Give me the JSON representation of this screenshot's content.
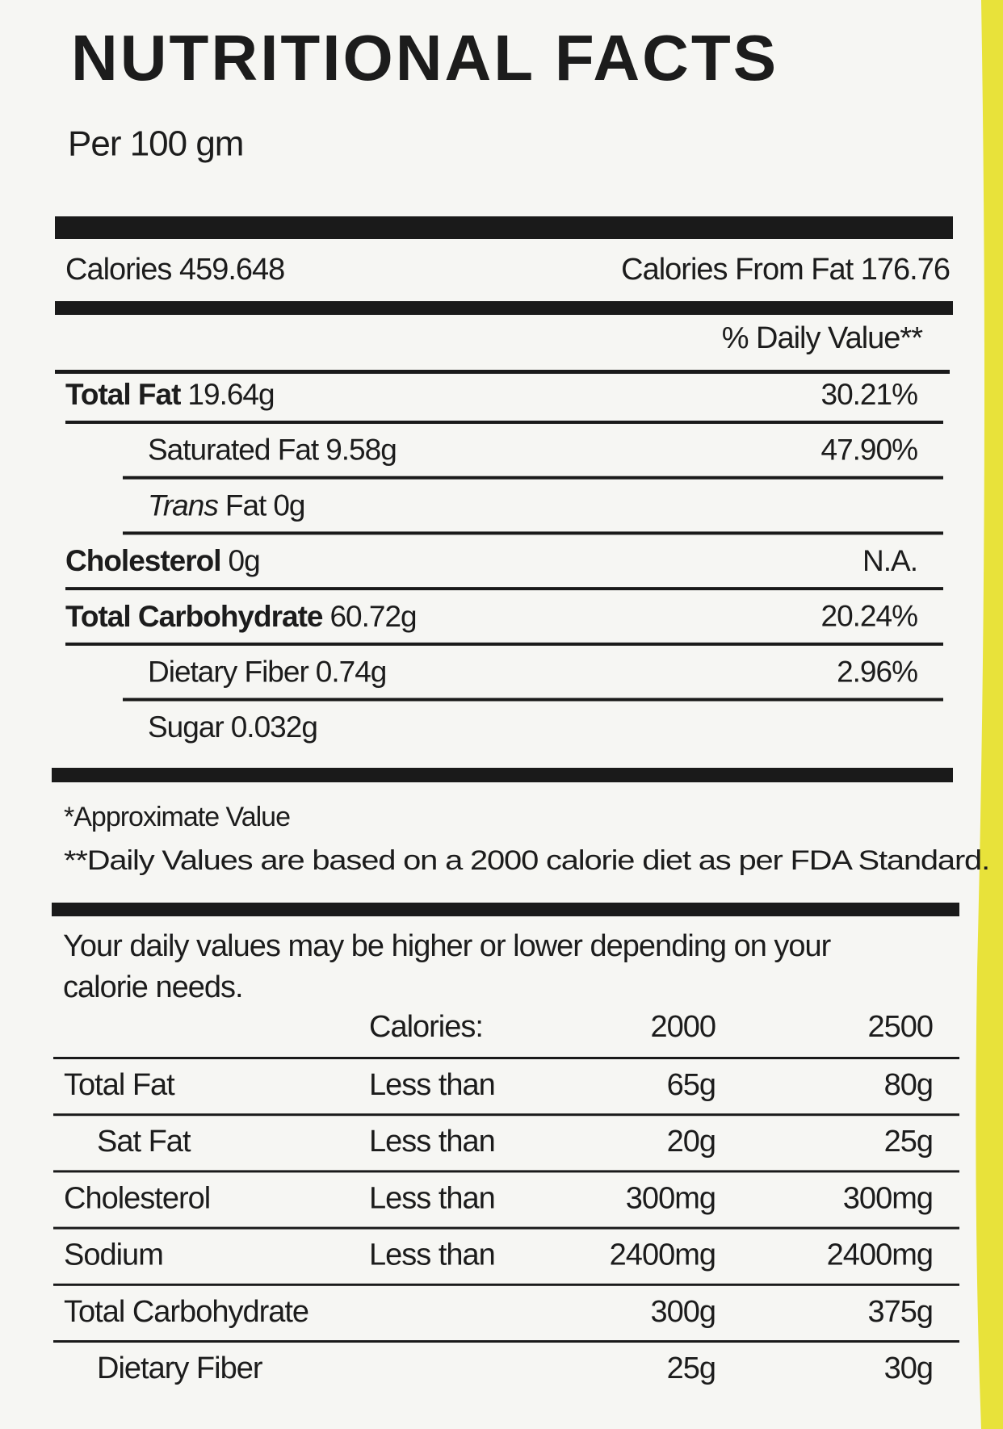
{
  "title": "NUTRITIONAL FACTS",
  "serving": "Per 100 gm",
  "calories": "Calories 459.648",
  "calories_from_fat": "Calories From Fat 176.76",
  "daily_value_header": "% Daily Value**",
  "nutrients": [
    {
      "name": "Total Fat",
      "amount": "19.64g",
      "dv": "30.21%",
      "bold": true,
      "indent": false
    },
    {
      "name": "Saturated Fat",
      "amount": "9.58g",
      "dv": "47.90%",
      "bold": false,
      "indent": true
    },
    {
      "name_italic": "Trans",
      "name": "Fat",
      "amount": "0g",
      "bold": false,
      "indent": true
    },
    {
      "name": "Cholesterol",
      "amount": "0g",
      "dv": "N.A.",
      "bold": true,
      "indent": false
    },
    {
      "name": "Total Carbohydrate",
      "amount": "60.72g",
      "dv": "20.24%",
      "bold": true,
      "indent": false
    },
    {
      "name": "Dietary Fiber",
      "amount": "0.74g",
      "dv": "2.96%",
      "bold": false,
      "indent": true
    },
    {
      "name": "Sugar",
      "amount": "0.032g",
      "bold": false,
      "indent": true
    }
  ],
  "footnotes": [
    "*Approximate Value",
    "**Daily Values are based on a 2000 calorie diet as per FDA Standard."
  ],
  "daily_note": [
    "Your daily values may be higher or lower depending on your",
    "calorie needs."
  ],
  "reference_table": {
    "header": [
      "Calories:",
      "2000",
      "2500"
    ],
    "rows": [
      {
        "cells": [
          "Total Fat",
          "Less than",
          "65g",
          "80g"
        ],
        "indent": false
      },
      {
        "cells": [
          "Sat Fat",
          "Less than",
          "20g",
          "25g"
        ],
        "indent": true
      },
      {
        "cells": [
          "Cholesterol",
          "Less than",
          "300mg",
          "300mg"
        ],
        "indent": false
      },
      {
        "cells": [
          "Sodium",
          "Less than",
          "2400mg",
          "2400mg"
        ],
        "indent": false
      },
      {
        "cells": [
          "Total Carbohydrate",
          null,
          "300g",
          "375g"
        ],
        "indent": false
      },
      {
        "cells": [
          "Dietary Fiber",
          null,
          "25g",
          "30g"
        ],
        "indent": true
      }
    ]
  }
}
